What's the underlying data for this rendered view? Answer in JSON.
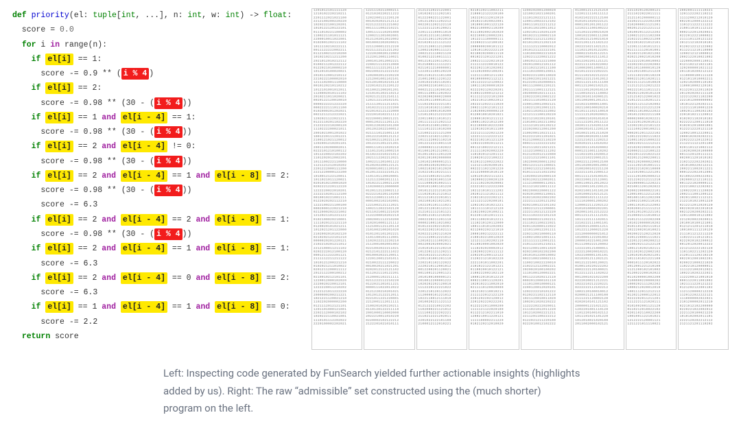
{
  "code": {
    "sig_def": "def",
    "sig_name": "priority",
    "sig_params": "(el: tuple[int, ...], n: int, w: int) -> float:",
    "line_init": "score = 0.0",
    "line_for": "for i in range(n):",
    "blocks": [
      {
        "cond_tokens": [
          [
            "el[i]",
            "yellow"
          ]
        ],
        "cond_trailer": " == 1:",
        "body_prefix": "score -= 0.9 ** (",
        "body_red": "i % 4",
        "body_suffix": ")"
      },
      {
        "cond_tokens": [
          [
            "el[i]",
            "yellow"
          ]
        ],
        "cond_trailer": " == 2:",
        "body_prefix": "score -= 0.98 ** (30 - (",
        "body_red": "i % 4",
        "body_suffix": "))"
      },
      {
        "cond_tokens": [
          [
            "el[i]",
            "yellow"
          ],
          [
            "== 1 and",
            "plain"
          ],
          [
            "el[i - 4]",
            "yellow"
          ]
        ],
        "cond_trailer": " == 1:",
        "body_prefix": "score -= 0.98 ** (30 - (",
        "body_red": "i % 4",
        "body_suffix": "))"
      },
      {
        "cond_tokens": [
          [
            "el[i]",
            "yellow"
          ],
          [
            "== 2 and",
            "plain"
          ],
          [
            "el[i - 4]",
            "yellow"
          ]
        ],
        "cond_trailer": " != 0:",
        "body_prefix": "score -= 0.98 ** (30 - (",
        "body_red": "i % 4",
        "body_suffix": "))"
      },
      {
        "cond_tokens": [
          [
            "el[i]",
            "yellow"
          ],
          [
            "== 2 and",
            "plain"
          ],
          [
            "el[i - 4]",
            "yellow"
          ],
          [
            "== 1 and",
            "plain"
          ],
          [
            "el[i - 8]",
            "yellow"
          ]
        ],
        "cond_trailer": " == 2:",
        "body_prefix": "score -= 0.98 ** (30 - (",
        "body_red": "i % 4",
        "body_suffix": "))",
        "extra_body": "score -= 6.3"
      },
      {
        "cond_tokens": [
          [
            "el[i]",
            "yellow"
          ],
          [
            "== 2 and",
            "plain"
          ],
          [
            "el[i - 4]",
            "yellow"
          ],
          [
            "== 2 and",
            "plain"
          ],
          [
            "el[i - 8]",
            "yellow"
          ]
        ],
        "cond_trailer": " == 1:",
        "body_prefix": "score -= 0.98 ** (30 - (",
        "body_red": "i % 4",
        "body_suffix": "))"
      },
      {
        "cond_tokens": [
          [
            "el[i]",
            "yellow"
          ],
          [
            "== 2 and",
            "plain"
          ],
          [
            "el[i - 4]",
            "yellow"
          ],
          [
            "== 1 and",
            "plain"
          ],
          [
            "el[i - 8]",
            "yellow"
          ]
        ],
        "cond_trailer": " == 1:",
        "body_plain": "score -= 6.3"
      },
      {
        "cond_tokens": [
          [
            "el[i]",
            "yellow"
          ],
          [
            "== 2 and",
            "plain"
          ],
          [
            "el[i - 4]",
            "yellow"
          ],
          [
            "== 0 and",
            "plain"
          ],
          [
            "el[i - 8]",
            "yellow"
          ]
        ],
        "cond_trailer": " == 2:",
        "body_plain": "score -= 6.3"
      },
      {
        "cond_tokens": [
          [
            "el[i]",
            "yellow"
          ],
          [
            "== 1 and",
            "plain"
          ],
          [
            "el[i - 4]",
            "yellow"
          ],
          [
            "== 1 and",
            "plain"
          ],
          [
            "el[i - 8]",
            "yellow"
          ]
        ],
        "cond_trailer": " == 0:",
        "body_plain": "score -= 2.2"
      }
    ],
    "line_return": "return score"
  },
  "caption": "Left: Inspecting code generated by FunSearch yielded further actionable insights (highlights added by us). Right: The raw “admissible” set constructed using the (much shorter) program on the left.",
  "data_blocks": {
    "num_columns": 8,
    "rows_per_column": 88,
    "digits_per_row": 16,
    "colors": {
      "text": "#777777",
      "border": "#cccccc",
      "background": "#ffffff"
    }
  },
  "highlight_colors": {
    "yellow": "#ffe900",
    "red": "#f21c1c"
  },
  "syntax_colors": {
    "keyword": "#008000",
    "operator_keyword": "#a020a0",
    "function_name": "#0000d0",
    "number": "#666666",
    "text": "#333333",
    "background": "#ffffff",
    "caption": "#6a7280"
  },
  "font_sizes_pt": {
    "code": 8.6,
    "data_grid": 3.1,
    "caption": 11.2
  }
}
